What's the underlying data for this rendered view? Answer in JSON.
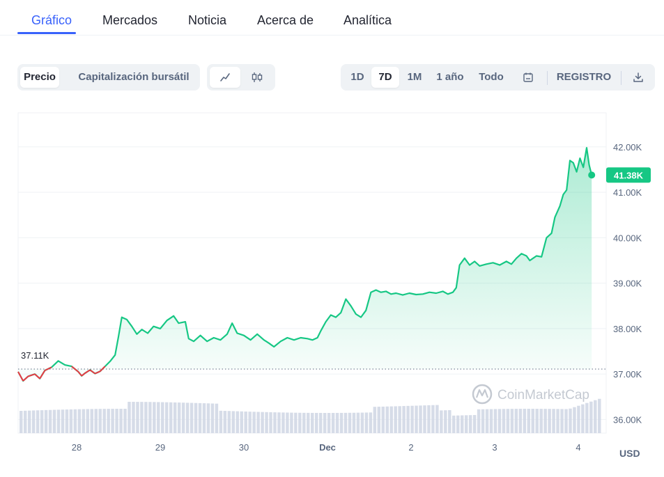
{
  "tabs": [
    {
      "label": "Gráfico",
      "active": true
    },
    {
      "label": "Mercados"
    },
    {
      "label": "Noticia"
    },
    {
      "label": "Acerca de"
    },
    {
      "label": "Analítica"
    }
  ],
  "toolbar": {
    "metric": [
      "Precio",
      "Capitalización bursátil"
    ],
    "chart_types": [
      "line-chart-icon",
      "candlestick-icon"
    ],
    "ranges": [
      "1D",
      "7D",
      "1M",
      "1 año",
      "Todo"
    ],
    "selected_range": "7D",
    "calendar_icon": "calendar-icon",
    "log_label": "REGISTRO",
    "download_icon": "download-icon"
  },
  "watermark": "CoinMarketCap",
  "chart_data": {
    "type": "line",
    "x_ticks": [
      "28",
      "29",
      "30",
      "Dec",
      "2",
      "3",
      "4"
    ],
    "y_ticks": [
      "42.00K",
      "41.00K",
      "40.00K",
      "39.00K",
      "38.00K",
      "37.00K",
      "36.00K"
    ],
    "ylim": [
      35700,
      42750
    ],
    "open_value": 37110,
    "open_label": "37.11K",
    "current_value": 41380,
    "current_label": "41.38K",
    "x_range": [
      0,
      7
    ],
    "unit": "USD",
    "colors": {
      "up": "#16c784",
      "down": "#ea3943",
      "volume": "#cfd6e4"
    },
    "series": [
      {
        "x": 0.0,
        "y": 37050
      },
      {
        "x": 0.06,
        "y": 36850
      },
      {
        "x": 0.12,
        "y": 36950
      },
      {
        "x": 0.2,
        "y": 37000
      },
      {
        "x": 0.26,
        "y": 36900
      },
      {
        "x": 0.32,
        "y": 37080
      },
      {
        "x": 0.4,
        "y": 37150
      },
      {
        "x": 0.48,
        "y": 37290
      },
      {
        "x": 0.56,
        "y": 37200
      },
      {
        "x": 0.64,
        "y": 37170
      },
      {
        "x": 0.72,
        "y": 37050
      },
      {
        "x": 0.76,
        "y": 36960
      },
      {
        "x": 0.8,
        "y": 37020
      },
      {
        "x": 0.86,
        "y": 37090
      },
      {
        "x": 0.92,
        "y": 37010
      },
      {
        "x": 0.98,
        "y": 37060
      },
      {
        "x": 1.04,
        "y": 37170
      },
      {
        "x": 1.1,
        "y": 37280
      },
      {
        "x": 1.16,
        "y": 37420
      },
      {
        "x": 1.2,
        "y": 37820
      },
      {
        "x": 1.24,
        "y": 38250
      },
      {
        "x": 1.3,
        "y": 38200
      },
      {
        "x": 1.36,
        "y": 38050
      },
      {
        "x": 1.42,
        "y": 37880
      },
      {
        "x": 1.48,
        "y": 37980
      },
      {
        "x": 1.55,
        "y": 37900
      },
      {
        "x": 1.62,
        "y": 38050
      },
      {
        "x": 1.7,
        "y": 38000
      },
      {
        "x": 1.78,
        "y": 38180
      },
      {
        "x": 1.86,
        "y": 38280
      },
      {
        "x": 1.92,
        "y": 38120
      },
      {
        "x": 2.0,
        "y": 38150
      },
      {
        "x": 2.04,
        "y": 37780
      },
      {
        "x": 2.1,
        "y": 37720
      },
      {
        "x": 2.18,
        "y": 37850
      },
      {
        "x": 2.26,
        "y": 37720
      },
      {
        "x": 2.34,
        "y": 37800
      },
      {
        "x": 2.42,
        "y": 37750
      },
      {
        "x": 2.5,
        "y": 37880
      },
      {
        "x": 2.56,
        "y": 38120
      },
      {
        "x": 2.62,
        "y": 37900
      },
      {
        "x": 2.7,
        "y": 37850
      },
      {
        "x": 2.78,
        "y": 37750
      },
      {
        "x": 2.86,
        "y": 37880
      },
      {
        "x": 2.94,
        "y": 37750
      },
      {
        "x": 3.0,
        "y": 37680
      },
      {
        "x": 3.06,
        "y": 37600
      },
      {
        "x": 3.14,
        "y": 37720
      },
      {
        "x": 3.22,
        "y": 37800
      },
      {
        "x": 3.3,
        "y": 37750
      },
      {
        "x": 3.38,
        "y": 37800
      },
      {
        "x": 3.46,
        "y": 37780
      },
      {
        "x": 3.52,
        "y": 37750
      },
      {
        "x": 3.58,
        "y": 37800
      },
      {
        "x": 3.62,
        "y": 37950
      },
      {
        "x": 3.68,
        "y": 38150
      },
      {
        "x": 3.74,
        "y": 38300
      },
      {
        "x": 3.8,
        "y": 38250
      },
      {
        "x": 3.86,
        "y": 38350
      },
      {
        "x": 3.92,
        "y": 38650
      },
      {
        "x": 3.98,
        "y": 38500
      },
      {
        "x": 4.04,
        "y": 38320
      },
      {
        "x": 4.1,
        "y": 38250
      },
      {
        "x": 4.16,
        "y": 38400
      },
      {
        "x": 4.22,
        "y": 38800
      },
      {
        "x": 4.28,
        "y": 38850
      },
      {
        "x": 4.34,
        "y": 38800
      },
      {
        "x": 4.4,
        "y": 38820
      },
      {
        "x": 4.46,
        "y": 38760
      },
      {
        "x": 4.52,
        "y": 38780
      },
      {
        "x": 4.6,
        "y": 38740
      },
      {
        "x": 4.68,
        "y": 38780
      },
      {
        "x": 4.76,
        "y": 38750
      },
      {
        "x": 4.84,
        "y": 38760
      },
      {
        "x": 4.92,
        "y": 38800
      },
      {
        "x": 5.0,
        "y": 38780
      },
      {
        "x": 5.08,
        "y": 38820
      },
      {
        "x": 5.14,
        "y": 38760
      },
      {
        "x": 5.2,
        "y": 38800
      },
      {
        "x": 5.24,
        "y": 38900
      },
      {
        "x": 5.28,
        "y": 39400
      },
      {
        "x": 5.34,
        "y": 39550
      },
      {
        "x": 5.4,
        "y": 39400
      },
      {
        "x": 5.46,
        "y": 39480
      },
      {
        "x": 5.52,
        "y": 39380
      },
      {
        "x": 5.6,
        "y": 39420
      },
      {
        "x": 5.68,
        "y": 39450
      },
      {
        "x": 5.76,
        "y": 39400
      },
      {
        "x": 5.84,
        "y": 39480
      },
      {
        "x": 5.9,
        "y": 39420
      },
      {
        "x": 5.96,
        "y": 39550
      },
      {
        "x": 6.02,
        "y": 39650
      },
      {
        "x": 6.08,
        "y": 39600
      },
      {
        "x": 6.12,
        "y": 39500
      },
      {
        "x": 6.2,
        "y": 39600
      },
      {
        "x": 6.26,
        "y": 39580
      },
      {
        "x": 6.32,
        "y": 40000
      },
      {
        "x": 6.38,
        "y": 40100
      },
      {
        "x": 6.42,
        "y": 40450
      },
      {
        "x": 6.48,
        "y": 40700
      },
      {
        "x": 6.52,
        "y": 40950
      },
      {
        "x": 6.56,
        "y": 41050
      },
      {
        "x": 6.6,
        "y": 41700
      },
      {
        "x": 6.64,
        "y": 41650
      },
      {
        "x": 6.68,
        "y": 41450
      },
      {
        "x": 6.72,
        "y": 41750
      },
      {
        "x": 6.76,
        "y": 41550
      },
      {
        "x": 6.8,
        "y": 41980
      },
      {
        "x": 6.83,
        "y": 41600
      },
      {
        "x": 6.86,
        "y": 41380
      }
    ]
  }
}
